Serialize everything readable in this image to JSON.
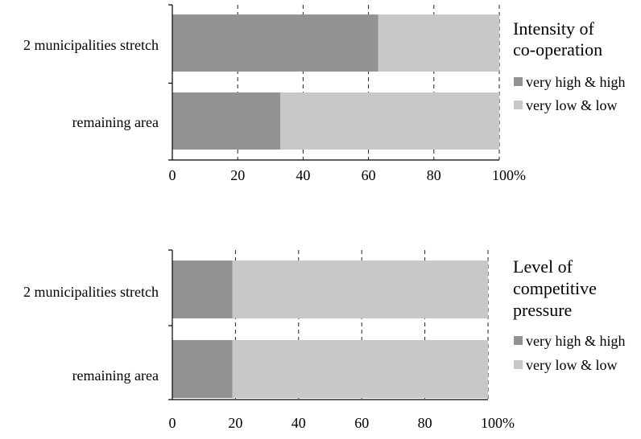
{
  "chart_data": [
    {
      "type": "bar",
      "orientation": "horizontal",
      "stacked": "100%",
      "title": "Intensity of co-operation",
      "categories": [
        "2 municipalities stretch",
        "remaining area"
      ],
      "series": [
        {
          "name": "very high & high",
          "values": [
            63,
            33
          ],
          "color": "#939393"
        },
        {
          "name": "very low & low",
          "values": [
            37,
            67
          ],
          "color": "#c8c8c8"
        }
      ],
      "xlim": [
        0,
        100
      ],
      "xticks": [
        "0",
        "20",
        "40",
        "60",
        "80",
        "100%"
      ],
      "grid": "vertical dashed",
      "legend_position": "right"
    },
    {
      "type": "bar",
      "orientation": "horizontal",
      "stacked": "100%",
      "title": "Level of competitive pressure",
      "categories": [
        "2 municipalities stretch",
        "remaining area"
      ],
      "series": [
        {
          "name": "very high & high",
          "values": [
            19,
            19
          ],
          "color": "#939393"
        },
        {
          "name": "very low & low",
          "values": [
            81,
            81
          ],
          "color": "#c8c8c8"
        }
      ],
      "xlim": [
        0,
        100
      ],
      "xticks": [
        "0",
        "20",
        "40",
        "60",
        "80",
        "100%"
      ],
      "grid": "vertical dashed",
      "legend_position": "right"
    }
  ]
}
